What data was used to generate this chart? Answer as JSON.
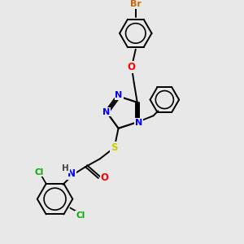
{
  "bg_color": "#e8e8e8",
  "atom_colors": {
    "N": "#0000ff",
    "O": "#ff0000",
    "S": "#cccc00",
    "Cl": "#00aa00",
    "Br": "#cc6600",
    "C": "#000000",
    "H": "#444444"
  },
  "bond_color": "#000000",
  "lw": 1.4
}
